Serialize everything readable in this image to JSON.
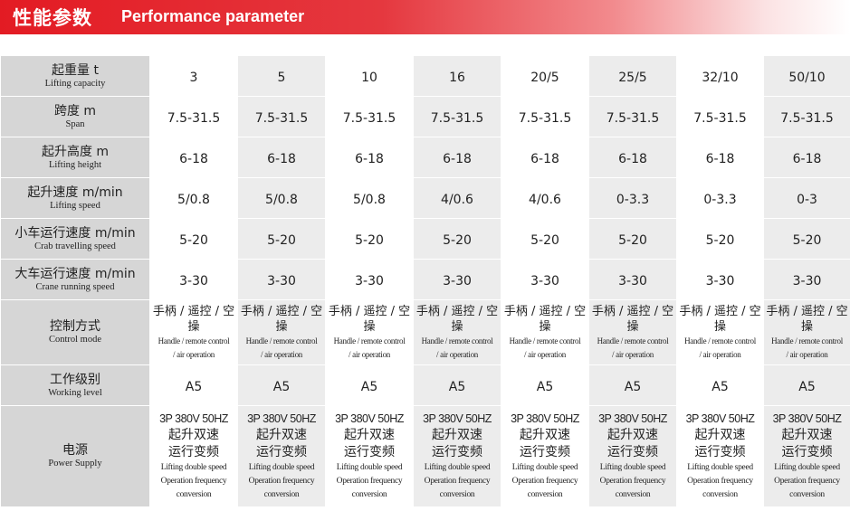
{
  "header": {
    "title_zh": "性能参数",
    "title_en": "Performance parameter",
    "accent_color": "#e31b23"
  },
  "table": {
    "rows": [
      {
        "label_zh": "起重量 t",
        "label_en": "Lifting capacity",
        "values": [
          "3",
          "5",
          "10",
          "16",
          "20/5",
          "25/5",
          "32/10",
          "50/10"
        ]
      },
      {
        "label_zh": "跨度 m",
        "label_en": "Span",
        "values": [
          "7.5-31.5",
          "7.5-31.5",
          "7.5-31.5",
          "7.5-31.5",
          "7.5-31.5",
          "7.5-31.5",
          "7.5-31.5",
          "7.5-31.5"
        ]
      },
      {
        "label_zh": "起升高度 m",
        "label_en": "Lifting height",
        "values": [
          "6-18",
          "6-18",
          "6-18",
          "6-18",
          "6-18",
          "6-18",
          "6-18",
          "6-18"
        ]
      },
      {
        "label_zh": "起升速度 m/min",
        "label_en": "Lifting speed",
        "values": [
          "5/0.8",
          "5/0.8",
          "5/0.8",
          "4/0.6",
          "4/0.6",
          "0-3.3",
          "0-3.3",
          "0-3"
        ]
      },
      {
        "label_zh": "小车运行速度 m/min",
        "label_en": "Crab travelling speed",
        "values": [
          "5-20",
          "5-20",
          "5-20",
          "5-20",
          "5-20",
          "5-20",
          "5-20",
          "5-20"
        ]
      },
      {
        "label_zh": "大车运行速度 m/min",
        "label_en": "Crane running speed",
        "values": [
          "3-30",
          "3-30",
          "3-30",
          "3-30",
          "3-30",
          "3-30",
          "3-30",
          "3-30"
        ]
      }
    ],
    "control_row": {
      "label_zh": "控制方式",
      "label_en": "Control mode",
      "value_zh_1": "手柄 / 遥控 / 空",
      "value_zh_2": "操",
      "value_en_1": "Handle / remote control",
      "value_en_2": "/ air operation"
    },
    "working_row": {
      "label_zh": "工作级别",
      "label_en": "Working level",
      "values": [
        "A5",
        "A5",
        "A5",
        "A5",
        "A5",
        "A5",
        "A5",
        "A5"
      ]
    },
    "power_row": {
      "label_zh": "电源",
      "label_en": "Power Supply",
      "value_1": "3P 380V 50HZ",
      "value_2": "起升双速",
      "value_3": "运行变频",
      "value_4": "Lifting double speed",
      "value_5": "Operation frequency",
      "value_6": "conversion"
    }
  }
}
